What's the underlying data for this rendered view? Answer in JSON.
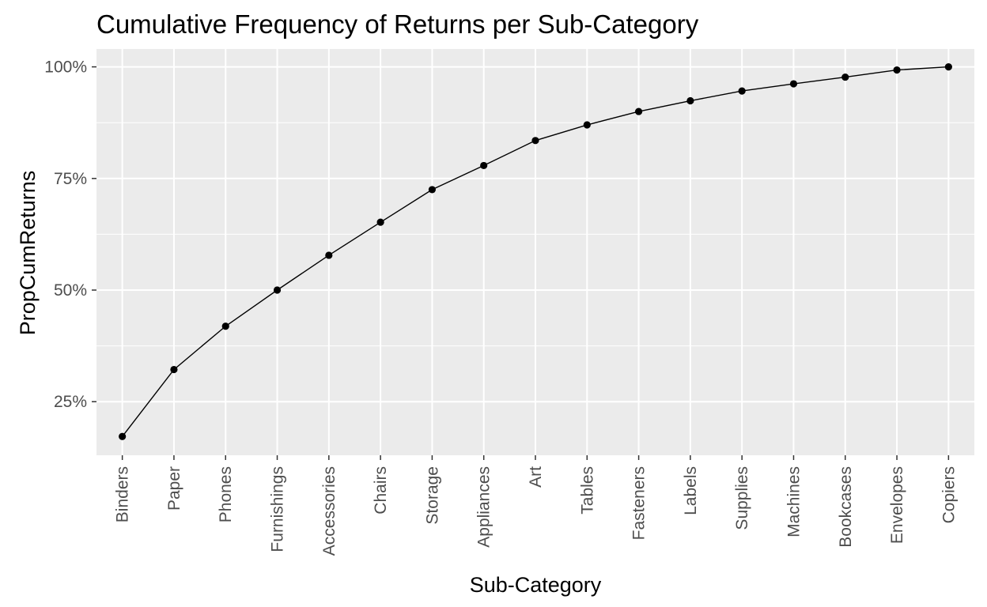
{
  "chart_data": {
    "type": "line",
    "title": "Cumulative Frequency of Returns per Sub-Category",
    "xlabel": "Sub-Category",
    "ylabel": "PropCumReturns",
    "categories": [
      "Binders",
      "Paper",
      "Phones",
      "Furnishings",
      "Accessories",
      "Chairs",
      "Storage",
      "Appliances",
      "Art",
      "Tables",
      "Fasteners",
      "Labels",
      "Supplies",
      "Machines",
      "Bookcases",
      "Envelopes",
      "Copiers"
    ],
    "series": [
      {
        "values": [
          0.172,
          0.322,
          0.419,
          0.5,
          0.578,
          0.652,
          0.725,
          0.779,
          0.835,
          0.87,
          0.9,
          0.924,
          0.946,
          0.962,
          0.977,
          0.993,
          1.0
        ],
        "marker": "point",
        "color": "#000000"
      }
    ],
    "ylim": [
      0.13,
      1.04
    ],
    "yticks": [
      0.25,
      0.5,
      0.75,
      1.0
    ],
    "ytick_labels": [
      "25%",
      "50%",
      "75%",
      "100%"
    ],
    "grid": true,
    "theme": {
      "panel_background": "#ebebeb",
      "grid_color": "#ffffff",
      "tick_label_color": "#4d4d4d",
      "line_color": "#000000"
    }
  }
}
